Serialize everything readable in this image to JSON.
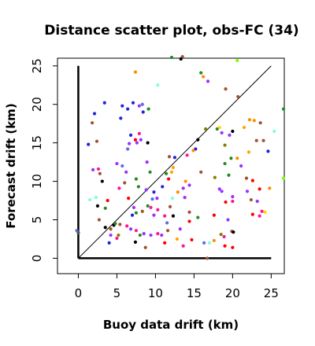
{
  "chart_data": {
    "type": "scatter",
    "title": "Distance scatter plot, obs-FC (34)",
    "xlabel": "Buoy data drift (km)",
    "ylabel": "Forecast drift (km)",
    "xlim": [
      -2.7,
      26.7
    ],
    "ylim": [
      -2,
      26
    ],
    "x_ticks": [
      0,
      5,
      10,
      15,
      20,
      25
    ],
    "y_ticks": [
      0,
      5,
      10,
      15,
      20,
      25
    ],
    "grid": false,
    "diagonal_line": {
      "from": [
        0,
        0
      ],
      "to": [
        25,
        25
      ]
    },
    "l_axis_lines": [
      [
        [
          0,
          25
        ],
        [
          0,
          0
        ]
      ],
      [
        [
          0,
          0
        ],
        [
          25,
          0
        ]
      ]
    ],
    "points": [
      {
        "x": -0.2,
        "y": 3.6,
        "color": "#5b6ee1"
      },
      {
        "x": 0,
        "y": 3.3,
        "color": "#555555"
      },
      {
        "x": 1.3,
        "y": 14.8,
        "color": "#2222dd"
      },
      {
        "x": 1.8,
        "y": 17.6,
        "color": "#a0522d"
      },
      {
        "x": 2.1,
        "y": 18.8,
        "color": "#2222dd"
      },
      {
        "x": 2.4,
        "y": 15.2,
        "color": "#a0522d"
      },
      {
        "x": 3.4,
        "y": 20.2,
        "color": "#2222dd"
      },
      {
        "x": 1.9,
        "y": 11.5,
        "color": "#9b30ff"
      },
      {
        "x": 2.6,
        "y": 11.6,
        "color": "#ff1493"
      },
      {
        "x": 2.8,
        "y": 11.0,
        "color": "#a0522d"
      },
      {
        "x": 3.1,
        "y": 10.0,
        "color": "#000000"
      },
      {
        "x": 1.5,
        "y": 7.6,
        "color": "#7fffd4"
      },
      {
        "x": 2.3,
        "y": 7.9,
        "color": "#7fffd4"
      },
      {
        "x": 2.5,
        "y": 6.8,
        "color": "#000000"
      },
      {
        "x": 3.8,
        "y": 7.5,
        "color": "#ff0000"
      },
      {
        "x": 3.5,
        "y": 6.5,
        "color": "#228b22"
      },
      {
        "x": 2.7,
        "y": 5.0,
        "color": "#a0522d"
      },
      {
        "x": 3.5,
        "y": 4.0,
        "color": "#000000"
      },
      {
        "x": 4.2,
        "y": 3.8,
        "color": "#a0522d"
      },
      {
        "x": 4.6,
        "y": 4.3,
        "color": "#000000"
      },
      {
        "x": 4.8,
        "y": 4.5,
        "color": "#228b22"
      },
      {
        "x": 4.2,
        "y": 3.0,
        "color": "#9b30ff"
      },
      {
        "x": 4.0,
        "y": 2.0,
        "color": "#2222dd"
      },
      {
        "x": 5.0,
        "y": 2.6,
        "color": "#ff1493"
      },
      {
        "x": 5.2,
        "y": 3.0,
        "color": "#7f7f00"
      },
      {
        "x": 5.4,
        "y": 4.4,
        "color": "#a0522d"
      },
      {
        "x": 5.0,
        "y": 12.3,
        "color": "#9b30ff"
      },
      {
        "x": 5.7,
        "y": 12.0,
        "color": "#5b6ee1"
      },
      {
        "x": 5.5,
        "y": 18.2,
        "color": "#2222dd"
      },
      {
        "x": 5.7,
        "y": 19.8,
        "color": "#2222dd"
      },
      {
        "x": 6.4,
        "y": 19.4,
        "color": "#2222dd"
      },
      {
        "x": 7.1,
        "y": 20.2,
        "color": "#2222dd"
      },
      {
        "x": 7.9,
        "y": 19.8,
        "color": "#9b30ff"
      },
      {
        "x": 8.3,
        "y": 20.0,
        "color": "#5b6ee1"
      },
      {
        "x": 7.4,
        "y": 24.2,
        "color": "#ff8c00"
      },
      {
        "x": 6.8,
        "y": 16.0,
        "color": "#2222dd"
      },
      {
        "x": 7.4,
        "y": 15.4,
        "color": "#ff0000"
      },
      {
        "x": 6.6,
        "y": 14.9,
        "color": "#9b30ff"
      },
      {
        "x": 6.4,
        "y": 14.2,
        "color": "#5b6ee1"
      },
      {
        "x": 7.6,
        "y": 15.0,
        "color": "#9b30ff"
      },
      {
        "x": 8.1,
        "y": 15.4,
        "color": "#9b30ff"
      },
      {
        "x": 9.0,
        "y": 15.0,
        "color": "#000000"
      },
      {
        "x": 9.1,
        "y": 19.4,
        "color": "#228b22"
      },
      {
        "x": 8.4,
        "y": 19.0,
        "color": "#2222dd"
      },
      {
        "x": 7.9,
        "y": 16.2,
        "color": "#ff1493"
      },
      {
        "x": 6.2,
        "y": 11.2,
        "color": "#9b30ff"
      },
      {
        "x": 6.0,
        "y": 9.8,
        "color": "#a0522d"
      },
      {
        "x": 5.3,
        "y": 9.1,
        "color": "#ff1493"
      },
      {
        "x": 6.5,
        "y": 7.8,
        "color": "#ff0000"
      },
      {
        "x": 7.5,
        "y": 10.3,
        "color": "#228b22"
      },
      {
        "x": 7.8,
        "y": 9.3,
        "color": "#228b22"
      },
      {
        "x": 8.8,
        "y": 8.9,
        "color": "#9b30ff"
      },
      {
        "x": 9.3,
        "y": 11.2,
        "color": "#228b22"
      },
      {
        "x": 8.9,
        "y": 12.5,
        "color": "#9b30ff"
      },
      {
        "x": 9.6,
        "y": 7.7,
        "color": "#5b6ee1"
      },
      {
        "x": 9.0,
        "y": 6.8,
        "color": "#228b22"
      },
      {
        "x": 7.2,
        "y": 6.6,
        "color": "#9b30ff"
      },
      {
        "x": 7.5,
        "y": 5.9,
        "color": "#228b22"
      },
      {
        "x": 7.0,
        "y": 5.6,
        "color": "#2222dd"
      },
      {
        "x": 8.3,
        "y": 6.1,
        "color": "#a0522d"
      },
      {
        "x": 9.4,
        "y": 6.6,
        "color": "#ff1493"
      },
      {
        "x": 9.8,
        "y": 5.6,
        "color": "#9b30ff"
      },
      {
        "x": 6.3,
        "y": 4.2,
        "color": "#ff1493"
      },
      {
        "x": 6.8,
        "y": 3.8,
        "color": "#9b30ff"
      },
      {
        "x": 7.5,
        "y": 3.6,
        "color": "#ff1493"
      },
      {
        "x": 8.0,
        "y": 3.0,
        "color": "#228b22"
      },
      {
        "x": 8.5,
        "y": 3.2,
        "color": "#9b30ff"
      },
      {
        "x": 9.4,
        "y": 3.0,
        "color": "#9b30ff"
      },
      {
        "x": 7.4,
        "y": 2.1,
        "color": "#000000"
      },
      {
        "x": 8.7,
        "y": 1.4,
        "color": "#a0522d"
      },
      {
        "x": 10.3,
        "y": 22.5,
        "color": "#7fffd4"
      },
      {
        "x": 9.8,
        "y": 8.6,
        "color": "#2222dd"
      },
      {
        "x": 10.2,
        "y": 7.8,
        "color": "#9b30ff"
      },
      {
        "x": 10.3,
        "y": 6.3,
        "color": "#ff1493"
      },
      {
        "x": 10.9,
        "y": 9.3,
        "color": "#2222dd"
      },
      {
        "x": 10.3,
        "y": 3.2,
        "color": "#ff1493"
      },
      {
        "x": 10.8,
        "y": 3.0,
        "color": "#9b30ff"
      },
      {
        "x": 11.2,
        "y": 2.0,
        "color": "#ff0000"
      },
      {
        "x": 11.6,
        "y": 3.6,
        "color": "#a0522d"
      },
      {
        "x": 11.5,
        "y": 4.6,
        "color": "#5b6ee1"
      },
      {
        "x": 11.2,
        "y": 5.5,
        "color": "#ff1493"
      },
      {
        "x": 12.3,
        "y": 5.5,
        "color": "#000000"
      },
      {
        "x": 11.9,
        "y": 6.7,
        "color": "#a0522d"
      },
      {
        "x": 11.7,
        "y": 10.3,
        "color": "#ff0000"
      },
      {
        "x": 11.4,
        "y": 11.0,
        "color": "#228b22"
      },
      {
        "x": 12.1,
        "y": 11.2,
        "color": "#ffa500"
      },
      {
        "x": 12.3,
        "y": 11.8,
        "color": "#ffa500"
      },
      {
        "x": 12.5,
        "y": 13.1,
        "color": "#2222dd"
      },
      {
        "x": 11.8,
        "y": 13.2,
        "color": "#a0522d"
      },
      {
        "x": 12.1,
        "y": 26.1,
        "color": "#228b22"
      },
      {
        "x": 13.5,
        "y": 26.2,
        "color": "#a0522d"
      },
      {
        "x": 13.3,
        "y": 25.9,
        "color": "#000000"
      },
      {
        "x": 12.2,
        "y": 7.8,
        "color": "#7fffd4"
      },
      {
        "x": 12.9,
        "y": 8.6,
        "color": "#ff8c00"
      },
      {
        "x": 12.8,
        "y": 2.5,
        "color": "#ffa500"
      },
      {
        "x": 13.2,
        "y": 3.8,
        "color": "#9b30ff"
      },
      {
        "x": 13.6,
        "y": 1.6,
        "color": "#ff1493"
      },
      {
        "x": 13.6,
        "y": 9.1,
        "color": "#9b30ff"
      },
      {
        "x": 13.9,
        "y": 10.0,
        "color": "#ff8c00"
      },
      {
        "x": 13.8,
        "y": 7.9,
        "color": "#9b30ff"
      },
      {
        "x": 14.1,
        "y": 13.4,
        "color": "#ff1493"
      },
      {
        "x": 14.4,
        "y": 9.5,
        "color": "#9b30ff"
      },
      {
        "x": 14.4,
        "y": 6.0,
        "color": "#a0522d"
      },
      {
        "x": 14.4,
        "y": 4.8,
        "color": "#ff0000"
      },
      {
        "x": 14.7,
        "y": 2.4,
        "color": "#ff0000"
      },
      {
        "x": 15.5,
        "y": 15.4,
        "color": "#000000"
      },
      {
        "x": 15.2,
        "y": 14.2,
        "color": "#2222dd"
      },
      {
        "x": 14.9,
        "y": 14.0,
        "color": "#ff8c00"
      },
      {
        "x": 15.9,
        "y": 11.2,
        "color": "#a0522d"
      },
      {
        "x": 15.5,
        "y": 5.3,
        "color": "#228b22"
      },
      {
        "x": 15.9,
        "y": 24.1,
        "color": "#228b22"
      },
      {
        "x": 16.2,
        "y": 23.6,
        "color": "#ff8c00"
      },
      {
        "x": 16.8,
        "y": 23.0,
        "color": "#9b30ff"
      },
      {
        "x": 16.5,
        "y": 16.8,
        "color": "#7f7f00"
      },
      {
        "x": 16.3,
        "y": 2.0,
        "color": "#5b6ee1"
      },
      {
        "x": 16.7,
        "y": 0.0,
        "color": "#a0522d"
      },
      {
        "x": 17.0,
        "y": 2.0,
        "color": "#7fffd4"
      },
      {
        "x": 17.6,
        "y": 2.3,
        "color": "#ff8c00"
      },
      {
        "x": 17.6,
        "y": 5.6,
        "color": "#ff0000"
      },
      {
        "x": 17.7,
        "y": 10.5,
        "color": "#7f7f00"
      },
      {
        "x": 18.3,
        "y": 9.0,
        "color": "#9b30ff"
      },
      {
        "x": 18.0,
        "y": 16.8,
        "color": "#228b22"
      },
      {
        "x": 18.3,
        "y": 17.0,
        "color": "#ffd700"
      },
      {
        "x": 18.6,
        "y": 16.3,
        "color": "#9b30ff"
      },
      {
        "x": 19.1,
        "y": 22.0,
        "color": "#a0522d"
      },
      {
        "x": 19.6,
        "y": 16.0,
        "color": "#9b30ff"
      },
      {
        "x": 20.0,
        "y": 16.5,
        "color": "#000000"
      },
      {
        "x": 19.0,
        "y": 14.7,
        "color": "#7f7f00"
      },
      {
        "x": 19.0,
        "y": 12.3,
        "color": "#228b22"
      },
      {
        "x": 19.5,
        "y": 10.8,
        "color": "#228b22"
      },
      {
        "x": 19.8,
        "y": 13.0,
        "color": "#228b22"
      },
      {
        "x": 20.6,
        "y": 13.0,
        "color": "#ff8c00"
      },
      {
        "x": 20.7,
        "y": 21.0,
        "color": "#a0522d"
      },
      {
        "x": 20.6,
        "y": 25.7,
        "color": "#7fff00"
      },
      {
        "x": 18.6,
        "y": 8.7,
        "color": "#9b30ff"
      },
      {
        "x": 19.1,
        "y": 7.3,
        "color": "#ff0000"
      },
      {
        "x": 19.4,
        "y": 5.0,
        "color": "#9b30ff"
      },
      {
        "x": 18.5,
        "y": 3.1,
        "color": "#7f7f00"
      },
      {
        "x": 18.9,
        "y": 2.8,
        "color": "#ff1493"
      },
      {
        "x": 19.0,
        "y": 1.6,
        "color": "#ff0000"
      },
      {
        "x": 20.0,
        "y": 1.4,
        "color": "#ff0000"
      },
      {
        "x": 19.9,
        "y": 3.5,
        "color": "#a0522d"
      },
      {
        "x": 20.1,
        "y": 3.4,
        "color": "#000000"
      },
      {
        "x": 20.0,
        "y": 7.4,
        "color": "#ff1493"
      },
      {
        "x": 20.0,
        "y": 8.0,
        "color": "#9b30ff"
      },
      {
        "x": 21.1,
        "y": 12.0,
        "color": "#9b30ff"
      },
      {
        "x": 21.5,
        "y": 17.0,
        "color": "#ffa500"
      },
      {
        "x": 22.2,
        "y": 18.0,
        "color": "#ff8c00"
      },
      {
        "x": 22.8,
        "y": 17.9,
        "color": "#ff8c00"
      },
      {
        "x": 23.6,
        "y": 17.6,
        "color": "#a0522d"
      },
      {
        "x": 23.1,
        "y": 15.3,
        "color": "#a0522d"
      },
      {
        "x": 24.0,
        "y": 15.3,
        "color": "#a0522d"
      },
      {
        "x": 22.1,
        "y": 13.8,
        "color": "#ffa500"
      },
      {
        "x": 21.8,
        "y": 10.4,
        "color": "#a0522d"
      },
      {
        "x": 22.6,
        "y": 10.1,
        "color": "#ff0000"
      },
      {
        "x": 21.9,
        "y": 8.7,
        "color": "#9b30ff"
      },
      {
        "x": 22.4,
        "y": 7.6,
        "color": "#a0522d"
      },
      {
        "x": 23.2,
        "y": 7.4,
        "color": "#9b30ff"
      },
      {
        "x": 22.6,
        "y": 5.7,
        "color": "#ff0000"
      },
      {
        "x": 23.5,
        "y": 5.5,
        "color": "#ff1493"
      },
      {
        "x": 23.8,
        "y": 6.1,
        "color": "#ff1493"
      },
      {
        "x": 24.2,
        "y": 6.0,
        "color": "#ffd700"
      },
      {
        "x": 23.5,
        "y": 9.0,
        "color": "#ff0000"
      },
      {
        "x": 24.8,
        "y": 9.1,
        "color": "#ff8c00"
      },
      {
        "x": 24.6,
        "y": 13.9,
        "color": "#2222dd"
      },
      {
        "x": 25.4,
        "y": 16.5,
        "color": "#7fffd4"
      },
      {
        "x": 26.6,
        "y": 10.4,
        "color": "#7fff00"
      },
      {
        "x": 26.6,
        "y": 19.4,
        "color": "#228b22"
      }
    ]
  }
}
